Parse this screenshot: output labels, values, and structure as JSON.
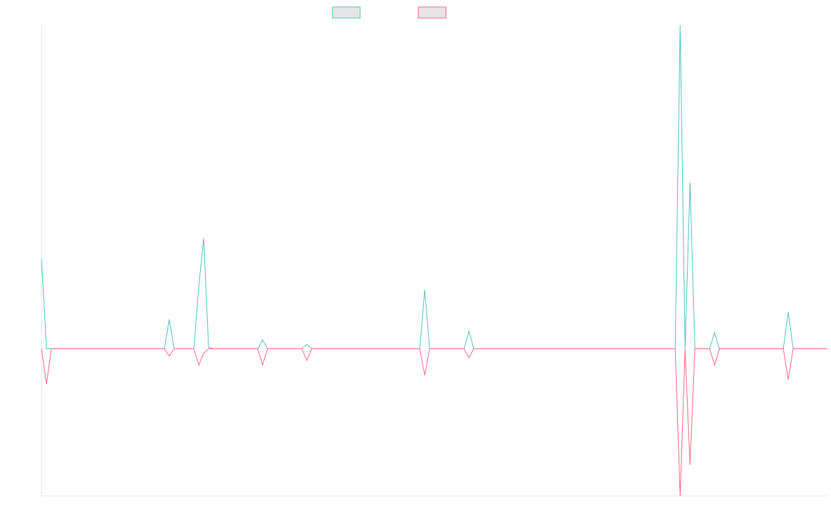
{
  "chart_data": {
    "type": "line",
    "title": "",
    "xlabel": "",
    "ylabel": "",
    "legend_position": "top-center",
    "grid": false,
    "x": [
      0,
      1,
      2,
      3,
      4,
      5,
      6,
      7,
      8,
      9,
      10,
      11,
      12,
      13,
      14,
      15,
      16,
      17,
      18,
      19,
      20,
      21,
      22,
      23,
      24,
      25,
      26,
      27,
      28,
      29,
      30,
      31,
      32,
      33,
      34,
      35,
      36,
      37,
      38,
      39,
      40,
      41,
      42,
      43,
      44,
      45,
      46,
      47,
      48,
      49,
      50,
      51,
      52,
      53,
      54,
      55,
      56,
      57,
      58,
      59,
      60,
      61,
      62,
      63,
      64,
      65,
      66,
      67,
      68,
      69,
      70,
      71,
      72,
      73,
      74,
      75,
      76,
      77,
      78,
      79,
      80,
      81,
      82,
      83,
      84,
      85,
      86,
      87,
      88,
      89,
      90,
      91,
      92,
      93,
      94,
      95,
      96,
      97,
      98,
      99,
      100,
      101,
      102,
      103,
      104,
      105,
      106,
      107,
      108,
      109,
      110,
      111,
      112,
      113,
      114,
      115,
      116,
      117,
      118,
      119,
      120,
      121,
      122,
      123,
      124,
      125,
      126,
      127,
      128,
      129,
      130,
      131,
      132,
      133,
      134,
      135,
      136,
      137,
      138,
      139,
      140,
      141,
      142,
      143,
      144,
      145,
      146,
      147,
      148,
      149,
      150,
      151,
      152,
      153,
      154,
      155,
      156,
      157,
      158,
      159,
      160
    ],
    "ylim": [
      -100,
      220
    ],
    "series": [
      {
        "color": "#4bc0c0",
        "values": [
          61,
          0,
          0,
          0,
          0,
          0,
          0,
          0,
          0,
          0,
          0,
          0,
          0,
          0,
          0,
          0,
          0,
          0,
          0,
          0,
          0,
          0,
          0,
          0,
          0,
          0,
          20,
          0,
          0,
          0,
          0,
          0,
          42,
          75,
          1,
          0,
          0,
          0,
          0,
          0,
          0,
          0,
          0,
          0,
          0,
          6,
          0,
          0,
          0,
          0,
          0,
          0,
          0,
          0,
          3,
          0,
          0,
          0,
          0,
          0,
          0,
          0,
          0,
          0,
          0,
          0,
          0,
          0,
          0,
          0,
          0,
          0,
          0,
          0,
          0,
          0,
          0,
          0,
          40,
          0,
          0,
          0,
          0,
          0,
          0,
          0,
          0,
          12,
          0,
          0,
          0,
          0,
          0,
          0,
          0,
          0,
          0,
          0,
          0,
          0,
          0,
          0,
          0,
          0,
          0,
          0,
          0,
          0,
          0,
          0,
          0,
          0,
          0,
          0,
          0,
          0,
          0,
          0,
          0,
          0,
          0,
          0,
          0,
          0,
          0,
          0,
          0,
          0,
          0,
          0,
          220,
          0,
          113,
          0,
          0,
          0,
          0,
          11,
          0,
          0,
          0,
          0,
          0,
          0,
          0,
          0,
          0,
          0,
          0,
          0,
          0,
          0,
          25,
          0,
          0,
          0,
          0,
          0,
          0,
          0,
          0
        ]
      },
      {
        "color": "#ff6384",
        "values": [
          0,
          -24,
          0,
          0,
          0,
          0,
          0,
          0,
          0,
          0,
          0,
          0,
          0,
          0,
          0,
          0,
          0,
          0,
          0,
          0,
          0,
          0,
          0,
          0,
          0,
          0,
          -5,
          0,
          0,
          0,
          0,
          0,
          -11,
          -3,
          0,
          0,
          0,
          0,
          0,
          0,
          0,
          0,
          0,
          0,
          0,
          -11,
          0,
          0,
          0,
          0,
          0,
          0,
          0,
          0,
          -8,
          0,
          0,
          0,
          0,
          0,
          0,
          0,
          0,
          0,
          0,
          0,
          0,
          0,
          0,
          0,
          0,
          0,
          0,
          0,
          0,
          0,
          0,
          0,
          -18,
          0,
          0,
          0,
          0,
          0,
          0,
          0,
          0,
          -6,
          0,
          0,
          0,
          0,
          0,
          0,
          0,
          0,
          0,
          0,
          0,
          0,
          0,
          0,
          0,
          0,
          0,
          0,
          0,
          0,
          0,
          0,
          0,
          0,
          0,
          0,
          0,
          0,
          0,
          0,
          0,
          0,
          0,
          0,
          0,
          0,
          0,
          0,
          0,
          0,
          0,
          0,
          -100,
          0,
          -79,
          0,
          0,
          0,
          0,
          -11,
          0,
          0,
          0,
          0,
          0,
          0,
          0,
          0,
          0,
          0,
          0,
          0,
          0,
          0,
          -21,
          0,
          0,
          0,
          0,
          0,
          0,
          0,
          0
        ]
      }
    ]
  }
}
